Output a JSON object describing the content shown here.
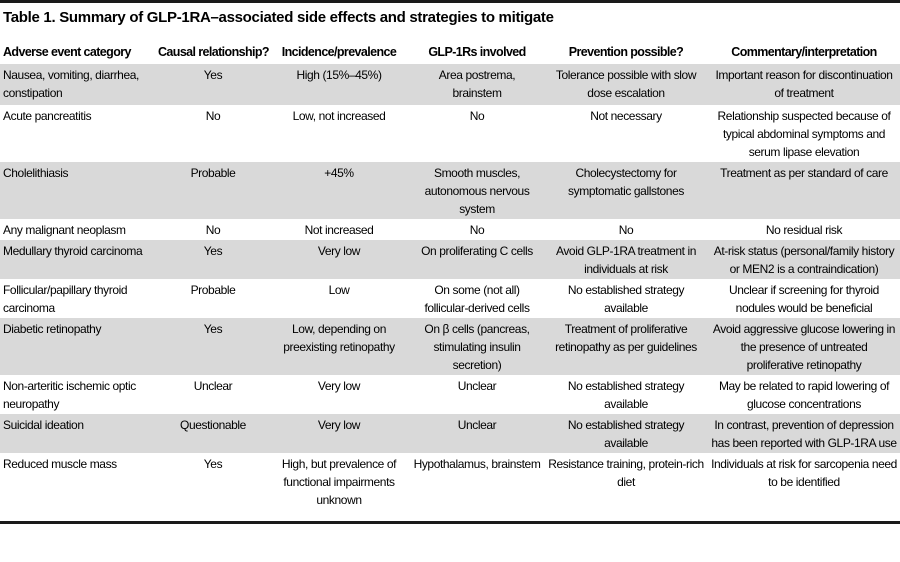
{
  "title": "Table 1. Summary of GLP-1RA–associated side effects and strategies to mitigate",
  "colors": {
    "row_shade": "#d9d9d9",
    "rule": "#1a1a1a",
    "text": "#000000"
  },
  "table": {
    "headers": [
      "Adverse event category",
      "Causal relationship?",
      "Incidence/prevalence",
      "GLP-1Rs involved",
      "Prevention possible?",
      "Commentary/interpretation"
    ],
    "rows": [
      [
        "Nausea, vomiting, diarrhea, constipation",
        "Yes",
        "High (15%–45%)",
        "Area postrema, brainstem",
        "Tolerance possible with slow dose escalation",
        "Important reason for discontinuation of treatment"
      ],
      [
        "Acute pancreatitis",
        "No",
        "Low, not increased",
        "No",
        "Not necessary",
        "Relationship suspected because of typical abdominal symptoms and serum lipase elevation"
      ],
      [
        "Cholelithiasis",
        "Probable",
        "+45%",
        "Smooth muscles, autonomous nervous system",
        "Cholecystectomy for symptomatic gallstones",
        "Treatment as per standard of care"
      ],
      [
        "Any malignant neoplasm",
        "No",
        "Not increased",
        "No",
        "No",
        "No residual risk"
      ],
      [
        "Medullary thyroid carcinoma",
        "Yes",
        "Very low",
        "On proliferating C cells",
        "Avoid GLP-1RA treatment in individuals at risk",
        "At-risk status (personal/family history or MEN2 is a contraindication)"
      ],
      [
        "Follicular/papillary thyroid carcinoma",
        "Probable",
        "Low",
        "On some (not all) follicular-derived cells",
        "No established strategy available",
        "Unclear if screening for thyroid nodules would be beneficial"
      ],
      [
        "Diabetic retinopathy",
        "Yes",
        "Low, depending on preexisting retinopathy",
        "On β cells (pancreas, stimulating insulin secretion)",
        "Treatment of proliferative retinopathy as per guidelines",
        "Avoid aggressive glucose lowering in the presence of untreated proliferative retinopathy"
      ],
      [
        "Non-arteritic ischemic optic neuropathy",
        "Unclear",
        "Very low",
        "Unclear",
        "No established strategy available",
        "May be related to rapid lowering of glucose concentrations"
      ],
      [
        "Suicidal ideation",
        "Questionable",
        "Very low",
        "Unclear",
        "No established strategy available",
        "In contrast, prevention of depression has been reported with GLP-1RA use"
      ],
      [
        "Reduced muscle mass",
        "Yes",
        "High, but prevalence of functional impairments unknown",
        "Hypothalamus, brainstem",
        "Resistance training, protein-rich diet",
        "Individuals at risk for sarcopenia need to be identified"
      ]
    ]
  }
}
